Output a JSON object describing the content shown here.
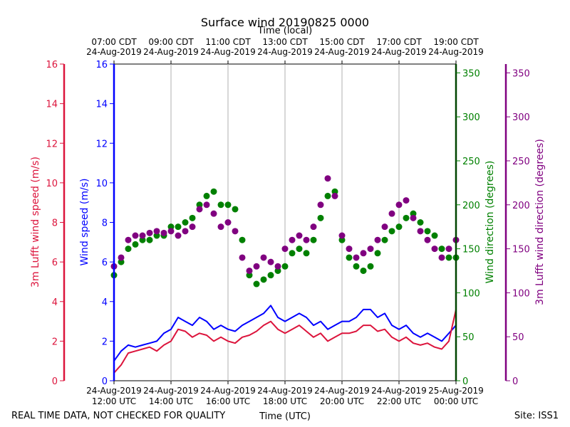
{
  "chart_data": {
    "type": "line",
    "title": "Surface wind 20190825 0000",
    "top_axis_label": "Time (local)",
    "xlabel": "Time (UTC)",
    "footer_left": "REAL TIME DATA, NOT CHECKED FOR QUALITY",
    "footer_right": "Site: ISS1",
    "x_range_hours_utc": [
      12,
      24
    ],
    "x_ticks_utc": [
      {
        "hour": 12,
        "line1": "24-Aug-2019",
        "line2": "12:00 UTC"
      },
      {
        "hour": 14,
        "line1": "24-Aug-2019",
        "line2": "14:00 UTC"
      },
      {
        "hour": 16,
        "line1": "24-Aug-2019",
        "line2": "16:00 UTC"
      },
      {
        "hour": 18,
        "line1": "24-Aug-2019",
        "line2": "18:00 UTC"
      },
      {
        "hour": 20,
        "line1": "24-Aug-2019",
        "line2": "20:00 UTC"
      },
      {
        "hour": 22,
        "line1": "24-Aug-2019",
        "line2": "22:00 UTC"
      },
      {
        "hour": 24,
        "line1": "25-Aug-2019",
        "line2": "00:00 UTC"
      }
    ],
    "x_ticks_local": [
      {
        "hour": 12,
        "line1": "07:00 CDT",
        "line2": "24-Aug-2019"
      },
      {
        "hour": 14,
        "line1": "09:00 CDT",
        "line2": "24-Aug-2019"
      },
      {
        "hour": 16,
        "line1": "11:00 CDT",
        "line2": "24-Aug-2019"
      },
      {
        "hour": 18,
        "line1": "13:00 CDT",
        "line2": "24-Aug-2019"
      },
      {
        "hour": 20,
        "line1": "15:00 CDT",
        "line2": "24-Aug-2019"
      },
      {
        "hour": 22,
        "line1": "17:00 CDT",
        "line2": "24-Aug-2019"
      },
      {
        "hour": 24,
        "line1": "19:00 CDT",
        "line2": "24-Aug-2019"
      }
    ],
    "axes": {
      "lufft_speed": {
        "label": "3m Lufft wind speed (m/s)",
        "range": [
          0,
          16
        ],
        "ticks": [
          0,
          2,
          4,
          6,
          8,
          10,
          12,
          14,
          16
        ],
        "color": "#dc143c"
      },
      "wind_speed": {
        "label": "Wind speed (m/s)",
        "range": [
          0,
          16
        ],
        "ticks": [
          0,
          2,
          4,
          6,
          8,
          10,
          12,
          14,
          16
        ],
        "color": "#0000ff"
      },
      "wind_dir": {
        "label": "Wind direction (degrees)",
        "range": [
          0,
          360
        ],
        "ticks": [
          0,
          50,
          100,
          150,
          200,
          250,
          300,
          350
        ],
        "color": "#008000"
      },
      "lufft_dir": {
        "label": "3m Lufft wind direction (degrees)",
        "range": [
          0,
          360
        ],
        "ticks": [
          0,
          50,
          100,
          150,
          200,
          250,
          300,
          350
        ],
        "color": "#800080"
      }
    },
    "series": [
      {
        "name": "Wind speed (m/s)",
        "kind": "line",
        "axis": "wind_speed",
        "color": "#0000ff",
        "x_hours": [
          12.0,
          12.25,
          12.5,
          12.75,
          13.0,
          13.25,
          13.5,
          13.75,
          14.0,
          14.25,
          14.5,
          14.75,
          15.0,
          15.25,
          15.5,
          15.75,
          16.0,
          16.25,
          16.5,
          16.75,
          17.0,
          17.25,
          17.5,
          17.75,
          18.0,
          18.25,
          18.5,
          18.75,
          19.0,
          19.25,
          19.5,
          19.75,
          20.0,
          20.25,
          20.5,
          20.75,
          21.0,
          21.25,
          21.5,
          21.75,
          22.0,
          22.25,
          22.5,
          22.75,
          23.0,
          23.25,
          23.5,
          23.75,
          24.0
        ],
        "values": [
          1.0,
          1.5,
          1.8,
          1.7,
          1.8,
          1.9,
          2.0,
          2.4,
          2.6,
          3.2,
          3.0,
          2.8,
          3.2,
          3.0,
          2.6,
          2.8,
          2.6,
          2.5,
          2.8,
          3.0,
          3.2,
          3.4,
          3.8,
          3.2,
          3.0,
          3.2,
          3.4,
          3.2,
          2.8,
          3.0,
          2.6,
          2.8,
          3.0,
          3.0,
          3.2,
          3.6,
          3.6,
          3.2,
          3.4,
          2.8,
          2.6,
          2.8,
          2.4,
          2.2,
          2.4,
          2.2,
          2.0,
          2.4,
          2.8
        ]
      },
      {
        "name": "3m Lufft wind speed (m/s)",
        "kind": "line",
        "axis": "lufft_speed",
        "color": "#dc143c",
        "x_hours": [
          12.0,
          12.25,
          12.5,
          12.75,
          13.0,
          13.25,
          13.5,
          13.75,
          14.0,
          14.25,
          14.5,
          14.75,
          15.0,
          15.25,
          15.5,
          15.75,
          16.0,
          16.25,
          16.5,
          16.75,
          17.0,
          17.25,
          17.5,
          17.75,
          18.0,
          18.25,
          18.5,
          18.75,
          19.0,
          19.25,
          19.5,
          19.75,
          20.0,
          20.25,
          20.5,
          20.75,
          21.0,
          21.25,
          21.5,
          21.75,
          22.0,
          22.25,
          22.5,
          22.75,
          23.0,
          23.25,
          23.5,
          23.75,
          24.0
        ],
        "values": [
          0.4,
          0.8,
          1.4,
          1.5,
          1.6,
          1.7,
          1.5,
          1.8,
          2.0,
          2.6,
          2.5,
          2.2,
          2.4,
          2.3,
          2.0,
          2.2,
          2.0,
          1.9,
          2.2,
          2.3,
          2.5,
          2.8,
          3.0,
          2.6,
          2.4,
          2.6,
          2.8,
          2.5,
          2.2,
          2.4,
          2.0,
          2.2,
          2.4,
          2.4,
          2.5,
          2.8,
          2.8,
          2.5,
          2.6,
          2.2,
          2.0,
          2.2,
          1.9,
          1.8,
          1.9,
          1.7,
          1.6,
          2.0,
          3.6
        ]
      },
      {
        "name": "Wind direction (degrees)",
        "kind": "scatter",
        "axis": "wind_dir",
        "color": "#008000",
        "x_hours": [
          12.0,
          12.25,
          12.5,
          12.75,
          13.0,
          13.25,
          13.5,
          13.75,
          14.0,
          14.25,
          14.5,
          14.75,
          15.0,
          15.25,
          15.5,
          15.75,
          16.0,
          16.25,
          16.5,
          16.75,
          17.0,
          17.25,
          17.5,
          17.75,
          18.0,
          18.25,
          18.5,
          18.75,
          19.0,
          19.25,
          19.5,
          19.75,
          20.0,
          20.25,
          20.5,
          20.75,
          21.0,
          21.25,
          21.5,
          21.75,
          22.0,
          22.25,
          22.5,
          22.75,
          23.0,
          23.25,
          23.5,
          23.75,
          24.0
        ],
        "values": [
          120,
          135,
          150,
          155,
          160,
          160,
          165,
          165,
          175,
          175,
          180,
          185,
          200,
          210,
          215,
          200,
          200,
          195,
          160,
          120,
          110,
          115,
          120,
          125,
          130,
          145,
          150,
          145,
          160,
          185,
          210,
          215,
          160,
          140,
          130,
          125,
          130,
          145,
          160,
          170,
          175,
          185,
          190,
          180,
          170,
          165,
          150,
          140,
          140
        ]
      },
      {
        "name": "3m Lufft wind direction (degrees)",
        "kind": "scatter",
        "axis": "lufft_dir",
        "color": "#800080",
        "x_hours": [
          12.0,
          12.25,
          12.5,
          12.75,
          13.0,
          13.25,
          13.5,
          13.75,
          14.0,
          14.25,
          14.5,
          14.75,
          15.0,
          15.25,
          15.5,
          15.75,
          16.0,
          16.25,
          16.5,
          16.75,
          17.0,
          17.25,
          17.5,
          17.75,
          18.0,
          18.25,
          18.5,
          18.75,
          19.0,
          19.25,
          19.5,
          19.75,
          20.0,
          20.25,
          20.5,
          20.75,
          21.0,
          21.25,
          21.5,
          21.75,
          22.0,
          22.25,
          22.5,
          22.75,
          23.0,
          23.25,
          23.5,
          23.75,
          24.0
        ],
        "values": [
          130,
          140,
          160,
          165,
          165,
          168,
          170,
          168,
          170,
          165,
          170,
          175,
          195,
          200,
          190,
          175,
          180,
          170,
          140,
          125,
          130,
          140,
          135,
          130,
          150,
          160,
          165,
          160,
          175,
          200,
          230,
          210,
          165,
          150,
          140,
          145,
          150,
          160,
          175,
          190,
          200,
          205,
          185,
          170,
          160,
          150,
          140,
          150,
          160
        ]
      }
    ]
  }
}
